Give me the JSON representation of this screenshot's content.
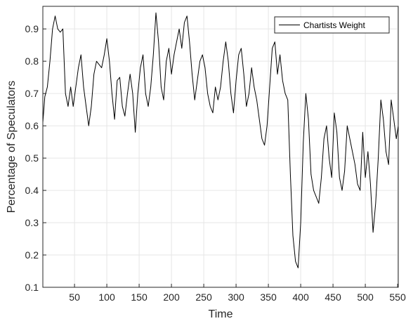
{
  "chart_data": {
    "type": "line",
    "xlabel": "Time",
    "ylabel": "Percentage of Speculators",
    "xlim": [
      1,
      551
    ],
    "ylim": [
      0.1,
      0.97
    ],
    "xticks": [
      50,
      100,
      150,
      200,
      250,
      300,
      350,
      400,
      450,
      500,
      550
    ],
    "yticks": [
      0.1,
      0.2,
      0.3,
      0.4,
      0.5,
      0.6,
      0.7,
      0.8,
      0.9
    ],
    "grid": true,
    "legend_position": "top-right",
    "colors": {
      "line": "#000000",
      "grid": "#e6e6e6",
      "axis": "#262626"
    },
    "series": [
      {
        "name": "Chartists Weight",
        "x": [
          1,
          4,
          8,
          12,
          16,
          20,
          24,
          28,
          32,
          36,
          40,
          44,
          48,
          52,
          56,
          60,
          64,
          68,
          72,
          76,
          80,
          84,
          88,
          92,
          96,
          100,
          104,
          108,
          112,
          116,
          120,
          124,
          128,
          132,
          136,
          140,
          144,
          148,
          152,
          156,
          160,
          164,
          168,
          172,
          176,
          180,
          184,
          188,
          192,
          196,
          200,
          204,
          208,
          212,
          216,
          220,
          224,
          228,
          232,
          236,
          240,
          244,
          248,
          252,
          256,
          260,
          264,
          268,
          272,
          276,
          280,
          284,
          288,
          292,
          296,
          300,
          304,
          308,
          312,
          316,
          320,
          324,
          328,
          332,
          336,
          340,
          344,
          348,
          352,
          356,
          360,
          364,
          368,
          372,
          376,
          380,
          384,
          388,
          392,
          396,
          400,
          404,
          408,
          412,
          416,
          420,
          424,
          428,
          432,
          436,
          440,
          444,
          448,
          452,
          456,
          460,
          464,
          468,
          472,
          476,
          480,
          484,
          488,
          492,
          496,
          500,
          504,
          508,
          512,
          516,
          520,
          524,
          528,
          532,
          536,
          540,
          544,
          548,
          551
        ],
        "y": [
          0.61,
          0.69,
          0.72,
          0.8,
          0.9,
          0.94,
          0.9,
          0.89,
          0.9,
          0.7,
          0.66,
          0.72,
          0.66,
          0.72,
          0.78,
          0.82,
          0.72,
          0.66,
          0.6,
          0.66,
          0.76,
          0.8,
          0.79,
          0.78,
          0.82,
          0.87,
          0.8,
          0.7,
          0.62,
          0.74,
          0.75,
          0.66,
          0.63,
          0.7,
          0.76,
          0.7,
          0.58,
          0.7,
          0.78,
          0.82,
          0.7,
          0.66,
          0.72,
          0.82,
          0.95,
          0.86,
          0.72,
          0.68,
          0.8,
          0.84,
          0.76,
          0.82,
          0.86,
          0.9,
          0.84,
          0.92,
          0.94,
          0.86,
          0.76,
          0.68,
          0.74,
          0.8,
          0.82,
          0.78,
          0.7,
          0.66,
          0.64,
          0.72,
          0.68,
          0.72,
          0.8,
          0.86,
          0.8,
          0.7,
          0.64,
          0.74,
          0.82,
          0.84,
          0.76,
          0.66,
          0.7,
          0.78,
          0.72,
          0.68,
          0.62,
          0.56,
          0.54,
          0.6,
          0.72,
          0.84,
          0.86,
          0.76,
          0.82,
          0.74,
          0.7,
          0.68,
          0.45,
          0.26,
          0.18,
          0.16,
          0.3,
          0.55,
          0.7,
          0.62,
          0.45,
          0.4,
          0.38,
          0.36,
          0.44,
          0.56,
          0.6,
          0.5,
          0.44,
          0.64,
          0.58,
          0.44,
          0.4,
          0.46,
          0.6,
          0.56,
          0.52,
          0.48,
          0.42,
          0.4,
          0.58,
          0.44,
          0.52,
          0.42,
          0.27,
          0.36,
          0.5,
          0.68,
          0.62,
          0.52,
          0.48,
          0.68,
          0.62,
          0.56,
          0.6
        ]
      }
    ]
  }
}
